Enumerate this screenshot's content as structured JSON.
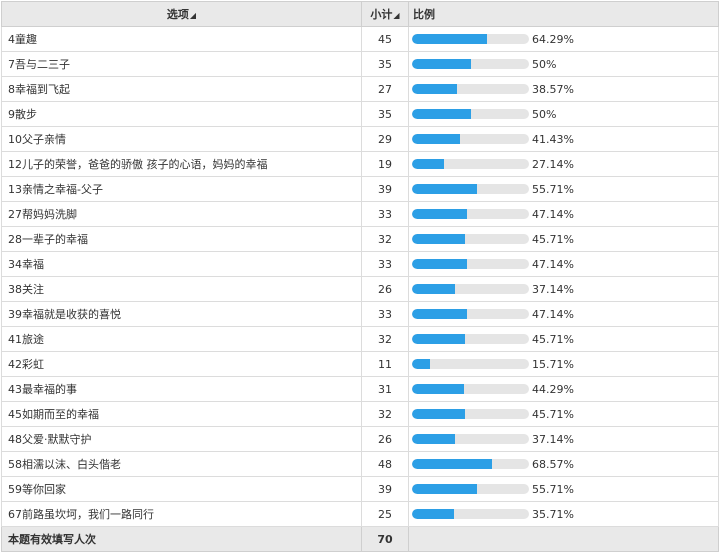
{
  "header": {
    "option_label": "选项",
    "count_label": "小计",
    "ratio_label": "比例"
  },
  "rows": [
    {
      "option": "4童趣",
      "count": "45",
      "pct": "64.29%",
      "fraction": 0.6429
    },
    {
      "option": "7吾与二三子",
      "count": "35",
      "pct": "50%",
      "fraction": 0.5
    },
    {
      "option": "8幸福到飞起",
      "count": "27",
      "pct": "38.57%",
      "fraction": 0.3857
    },
    {
      "option": "9散步",
      "count": "35",
      "pct": "50%",
      "fraction": 0.5
    },
    {
      "option": "10父子亲情",
      "count": "29",
      "pct": "41.43%",
      "fraction": 0.4143
    },
    {
      "option": "12儿子的荣誉，爸爸的骄傲 孩子的心语，妈妈的幸福",
      "count": "19",
      "pct": "27.14%",
      "fraction": 0.2714
    },
    {
      "option": "13亲情之幸福-父子",
      "count": "39",
      "pct": "55.71%",
      "fraction": 0.5571
    },
    {
      "option": "27帮妈妈洗脚",
      "count": "33",
      "pct": "47.14%",
      "fraction": 0.4714
    },
    {
      "option": "28一辈子的幸福",
      "count": "32",
      "pct": "45.71%",
      "fraction": 0.4571
    },
    {
      "option": "34幸福",
      "count": "33",
      "pct": "47.14%",
      "fraction": 0.4714
    },
    {
      "option": "38关注",
      "count": "26",
      "pct": "37.14%",
      "fraction": 0.3714
    },
    {
      "option": "39幸福就是收获的喜悦",
      "count": "33",
      "pct": "47.14%",
      "fraction": 0.4714
    },
    {
      "option": "41旅途",
      "count": "32",
      "pct": "45.71%",
      "fraction": 0.4571
    },
    {
      "option": "42彩虹",
      "count": "11",
      "pct": "15.71%",
      "fraction": 0.1571
    },
    {
      "option": "43最幸福的事",
      "count": "31",
      "pct": "44.29%",
      "fraction": 0.4429
    },
    {
      "option": "45如期而至的幸福",
      "count": "32",
      "pct": "45.71%",
      "fraction": 0.4571
    },
    {
      "option": "48父爱·默默守护",
      "count": "26",
      "pct": "37.14%",
      "fraction": 0.3714
    },
    {
      "option": "58相濡以沫、白头偕老",
      "count": "48",
      "pct": "68.57%",
      "fraction": 0.6857
    },
    {
      "option": "59等你回家",
      "count": "39",
      "pct": "55.71%",
      "fraction": 0.5571
    },
    {
      "option": "67前路虽坎坷，我们一路同行",
      "count": "25",
      "pct": "35.71%",
      "fraction": 0.3571
    }
  ],
  "footer": {
    "label": "本题有效填写人次",
    "total": "70"
  },
  "colors": {
    "bar_fill": "#2c9fe6",
    "bar_track": "#e5e5e5",
    "header_bg": "#e9e9e9"
  }
}
